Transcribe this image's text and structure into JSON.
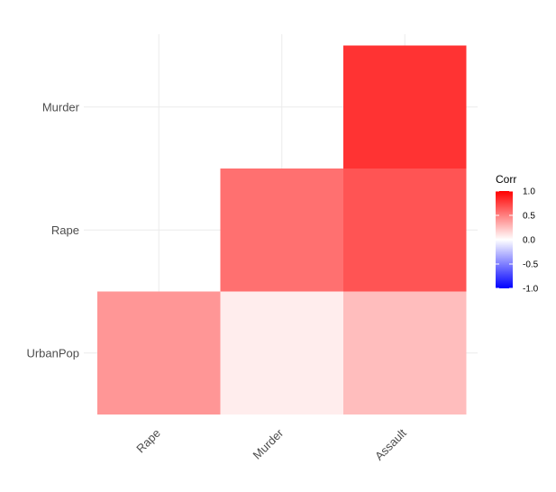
{
  "chart_data": {
    "type": "heatmap",
    "title": "",
    "x_categories": [
      "Rape",
      "Murder",
      "Assault"
    ],
    "y_categories": [
      "UrbanPop",
      "Rape",
      "Murder"
    ],
    "cells": [
      {
        "x": "Assault",
        "y": "Murder",
        "value": 0.8
      },
      {
        "x": "Murder",
        "y": "Rape",
        "value": 0.56
      },
      {
        "x": "Assault",
        "y": "Rape",
        "value": 0.67
      },
      {
        "x": "Rape",
        "y": "UrbanPop",
        "value": 0.41
      },
      {
        "x": "Murder",
        "y": "UrbanPop",
        "value": 0.07
      },
      {
        "x": "Assault",
        "y": "UrbanPop",
        "value": 0.26
      }
    ],
    "legend": {
      "title": "Corr",
      "ticks": [
        "1.0",
        "0.5",
        "0.0",
        "-0.5",
        "-1.0"
      ],
      "range": [
        -1,
        1
      ],
      "position": "right"
    },
    "colors": {
      "low": "#0000ff",
      "mid": "#ffffff",
      "high": "#ff0000",
      "grid": "#ebebeb"
    }
  }
}
